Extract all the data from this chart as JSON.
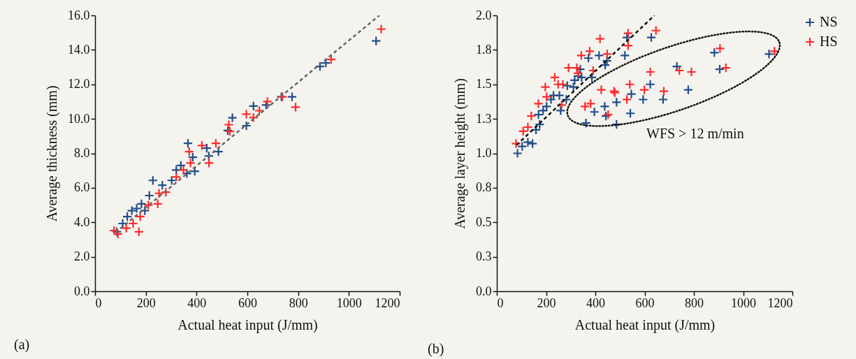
{
  "chart_data": [
    {
      "type": "scatter",
      "xlabel": "Actual heat input (J/mm)",
      "ylabel": "Average thickness (mm)",
      "marker": "cross",
      "legend": false,
      "grid": false,
      "xlim": [
        0,
        1200
      ],
      "xticks": [
        0,
        200,
        400,
        600,
        800,
        1000,
        1200
      ],
      "ylim": [
        0,
        16
      ],
      "yticks": [
        {
          "value": 0,
          "label": "0.0"
        },
        {
          "value": 2,
          "label": "2.0"
        },
        {
          "value": 4,
          "label": "4.0"
        },
        {
          "value": 6,
          "label": "6.0"
        },
        {
          "value": 8,
          "label": "8.0"
        },
        {
          "value": 10,
          "label": "10.0"
        },
        {
          "value": 12,
          "label": "12.0"
        },
        {
          "value": 14,
          "label": "14.0"
        },
        {
          "value": 16,
          "label": "16.0"
        }
      ],
      "annotations": [
        "(a)"
      ],
      "series": [
        {
          "color": "#1f4e89",
          "x": [
            86,
            109,
            127,
            145,
            164,
            183,
            196,
            214,
            228,
            265,
            302,
            320,
            338,
            362,
            366,
            385,
            393,
            440,
            448,
            486,
            523,
            541,
            596,
            624,
            674,
            734,
            776,
            886,
            909,
            1107
          ],
          "values": [
            3.45,
            3.93,
            4.33,
            4.67,
            4.8,
            5.07,
            4.67,
            5.55,
            6.43,
            6.15,
            6.43,
            7.03,
            7.3,
            6.83,
            8.58,
            7.77,
            6.96,
            8.3,
            7.84,
            8.1,
            9.32,
            10.06,
            9.6,
            10.74,
            10.8,
            11.28,
            11.28,
            13.04,
            13.24,
            14.52
          ]
        },
        {
          "color": "#ff2a2a",
          "x": [
            75,
            90,
            123,
            150,
            173,
            178,
            210,
            247,
            252,
            279,
            320,
            348,
            371,
            376,
            421,
            449,
            476,
            527,
            531,
            596,
            624,
            647,
            679,
            738,
            790,
            930,
            1127
          ],
          "values": [
            3.52,
            3.32,
            3.66,
            3.93,
            3.45,
            4.33,
            5.0,
            5.07,
            5.68,
            5.75,
            6.63,
            7.03,
            8.1,
            7.44,
            8.45,
            7.44,
            8.58,
            9.66,
            9.27,
            10.27,
            10.07,
            10.47,
            11.0,
            11.28,
            10.68,
            13.44,
            15.2
          ]
        },
        {
          "type": "line",
          "color": "#666666",
          "line_style": "dashed",
          "marker": "none",
          "x": [
            80,
            1120
          ],
          "values": [
            3.4,
            16.0
          ]
        }
      ]
    },
    {
      "type": "scatter",
      "xlabel": "Actual heat input (J/mm)",
      "ylabel": "Average layer height (mm)",
      "marker": "cross",
      "legend": "right",
      "grid": false,
      "xlim": [
        0,
        1200
      ],
      "xticks": [
        0,
        200,
        400,
        600,
        800,
        1000,
        1200
      ],
      "ylim": [
        0,
        2
      ],
      "yticks": [
        {
          "value": 0,
          "label": "0.0"
        },
        {
          "value": 0.25,
          "label": "0.3"
        },
        {
          "value": 0.5,
          "label": "0.5"
        },
        {
          "value": 0.75,
          "label": "0.8"
        },
        {
          "value": 1,
          "label": "1.0"
        },
        {
          "value": 1.25,
          "label": "1.3"
        },
        {
          "value": 1.5,
          "label": "1.5"
        },
        {
          "value": 1.75,
          "label": "1.8"
        },
        {
          "value": 2,
          "label": "2.0"
        }
      ],
      "annotations": [
        "(b)",
        "WFS > 12 m/min"
      ],
      "series": [
        {
          "name": "NS",
          "color": "#1f4e89",
          "x": [
            84,
            103,
            126,
            145,
            159,
            174,
            169,
            188,
            202,
            220,
            230,
            254,
            259,
            282,
            286,
            311,
            316,
            330,
            339,
            344,
            372,
            386,
            415,
            440,
            447,
            520,
            528,
            627,
            362,
            396,
            438,
            443,
            486,
            486,
            542,
            546,
            594,
            623,
            675,
            883,
            905,
            1105,
            731,
            777
          ],
          "values": [
            1.0,
            1.05,
            1.08,
            1.07,
            1.17,
            1.21,
            1.28,
            1.31,
            1.34,
            1.39,
            1.42,
            1.42,
            1.31,
            1.39,
            1.49,
            1.48,
            1.53,
            1.56,
            1.61,
            1.55,
            1.69,
            1.55,
            1.71,
            1.64,
            1.67,
            1.71,
            1.84,
            1.84,
            1.22,
            1.3,
            1.34,
            1.27,
            1.37,
            1.21,
            1.29,
            1.43,
            1.39,
            1.5,
            1.39,
            1.73,
            1.61,
            1.72,
            1.63,
            1.46
          ]
        },
        {
          "name": "HS",
          "color": "#ff2a2a",
          "x": [
            78,
            107,
            126,
            140,
            169,
            197,
            202,
            235,
            249,
            268,
            263,
            291,
            325,
            330,
            343,
            377,
            391,
            419,
            448,
            533,
            533,
            646,
            358,
            381,
            424,
            452,
            476,
            479,
            528,
            540,
            599,
            623,
            678,
            906,
            930,
            1127,
            741,
            790
          ],
          "values": [
            1.07,
            1.16,
            1.19,
            1.27,
            1.36,
            1.48,
            1.41,
            1.55,
            1.5,
            1.5,
            1.35,
            1.62,
            1.62,
            1.58,
            1.71,
            1.74,
            1.6,
            1.83,
            1.72,
            1.87,
            1.78,
            1.89,
            1.34,
            1.36,
            1.46,
            1.28,
            1.45,
            1.44,
            1.39,
            1.5,
            1.46,
            1.59,
            1.45,
            1.76,
            1.62,
            1.74,
            1.6,
            1.59
          ]
        },
        {
          "type": "line",
          "color": "#111111",
          "line_style": "dashed",
          "marker": "none",
          "x": [
            80,
            640
          ],
          "values": [
            1.06,
            2.0
          ]
        }
      ]
    }
  ]
}
